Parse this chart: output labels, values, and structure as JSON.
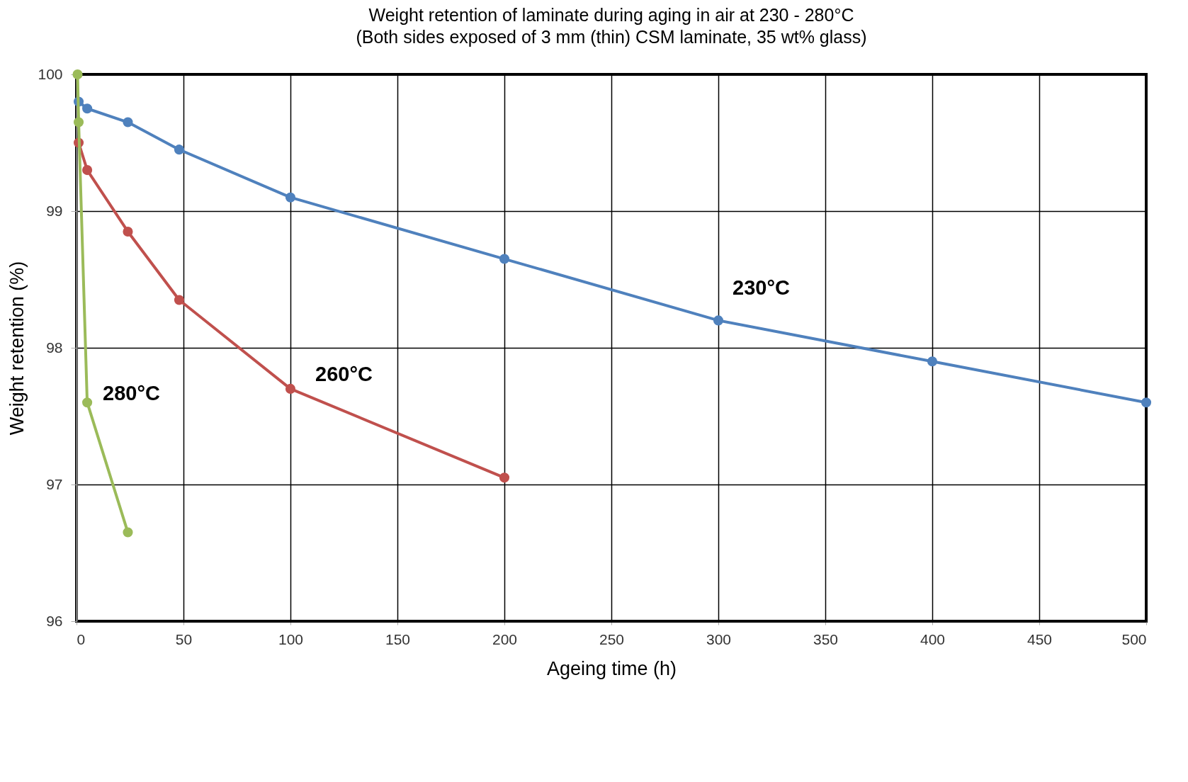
{
  "chart_data": {
    "type": "line",
    "title": "Weight retention of laminate during aging in air at 230 - 280°C",
    "subtitle": "(Both sides exposed of 3 mm (thin) CSM laminate, 35 wt% glass)",
    "xlabel": "Ageing time  (h)",
    "ylabel": "Weight retention (%)",
    "xlim": [
      0,
      500
    ],
    "xticks": [
      0,
      50,
      100,
      150,
      200,
      250,
      300,
      350,
      400,
      450,
      500
    ],
    "ylim": [
      96,
      100
    ],
    "yticks": [
      96,
      97,
      98,
      99,
      100
    ],
    "grid": true,
    "marker": "circle",
    "line_style": "solid",
    "series": [
      {
        "name": "230°C",
        "color": "#4f81bd",
        "x": [
          1,
          5,
          24,
          48,
          100,
          200,
          300,
          400,
          500
        ],
        "values": [
          99.8,
          99.75,
          99.65,
          99.45,
          99.1,
          98.65,
          98.2,
          97.9,
          97.6
        ]
      },
      {
        "name": "260°C",
        "color": "#c0504d",
        "x": [
          1,
          5,
          24,
          48,
          100,
          200
        ],
        "values": [
          99.5,
          99.3,
          98.85,
          98.35,
          97.7,
          97.05
        ]
      },
      {
        "name": "280°C",
        "color": "#9bbb59",
        "x": [
          0.5,
          1,
          5,
          24
        ],
        "values": [
          100,
          99.65,
          97.6,
          96.65
        ]
      }
    ]
  }
}
